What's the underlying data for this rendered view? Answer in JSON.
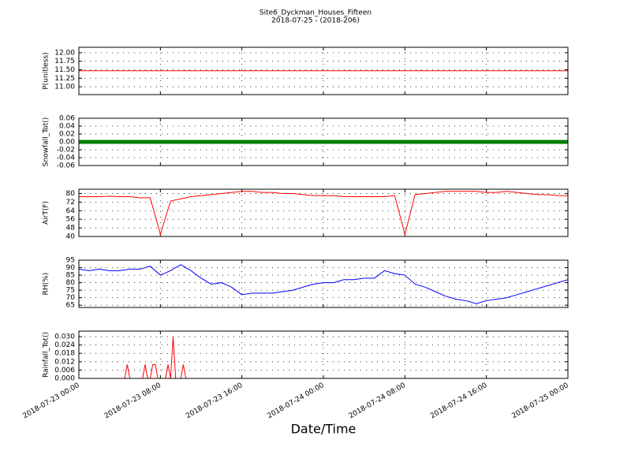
{
  "chart_data": [
    {
      "type": "line",
      "title": "Site6_Dyckman_Houses_Fifteen",
      "subtitle": "2018-07-25 - (2018-206)",
      "ylabel": "P(unitless)",
      "x": [
        "2018-07-23 00:00",
        "2018-07-25 00:00"
      ],
      "values": [
        11.47,
        11.47
      ],
      "color": "#ff0000",
      "linewidth": 1,
      "xlim": [
        "2018-07-23 00:00",
        "2018-07-25 00:00"
      ],
      "xticks": [
        "2018-07-23 00:00",
        "2018-07-23 08:00",
        "2018-07-23 16:00",
        "2018-07-24 00:00",
        "2018-07-24 08:00",
        "2018-07-24 16:00",
        "2018-07-25 00:00"
      ],
      "ylim": [
        10.77,
        12.16
      ],
      "yticks": [
        {
          "value": 11,
          "label": "11.00"
        },
        {
          "value": 11.25,
          "label": "11.25"
        },
        {
          "value": 11.5,
          "label": "11.50"
        },
        {
          "value": 11.75,
          "label": "11.75"
        },
        {
          "value": 12,
          "label": "12.00"
        }
      ],
      "grid": true
    },
    {
      "type": "line",
      "ylabel": "Snowfall_Tot()",
      "x": [
        "2018-07-23 00:00",
        "2018-07-25 00:00"
      ],
      "values": [
        0,
        0
      ],
      "color": "#008000",
      "linewidth": 5,
      "xlim": [
        "2018-07-23 00:00",
        "2018-07-25 00:00"
      ],
      "xticks": [
        "2018-07-23 00:00",
        "2018-07-23 08:00",
        "2018-07-23 16:00",
        "2018-07-24 00:00",
        "2018-07-24 08:00",
        "2018-07-24 16:00",
        "2018-07-25 00:00"
      ],
      "ylim": [
        -0.06,
        0.06
      ],
      "yticks": [
        {
          "value": -0.06,
          "label": "-0.06"
        },
        {
          "value": -0.04,
          "label": "-0.04"
        },
        {
          "value": -0.02,
          "label": "-0.02"
        },
        {
          "value": 0,
          "label": "0.00"
        },
        {
          "value": 0.02,
          "label": "0.02"
        },
        {
          "value": 0.04,
          "label": "0.04"
        },
        {
          "value": 0.06,
          "label": "0.06"
        }
      ],
      "grid": true
    },
    {
      "type": "line",
      "ylabel": "AirT(F)",
      "x": [
        "2018-07-23 00:00",
        "2018-07-23 01:00",
        "2018-07-23 02:00",
        "2018-07-23 03:00",
        "2018-07-23 04:00",
        "2018-07-23 05:00",
        "2018-07-23 06:00",
        "2018-07-23 07:00",
        "2018-07-23 08:00",
        "2018-07-23 09:00",
        "2018-07-23 10:00",
        "2018-07-23 11:00",
        "2018-07-23 12:00",
        "2018-07-23 13:00",
        "2018-07-23 14:00",
        "2018-07-23 15:00",
        "2018-07-23 16:00",
        "2018-07-23 17:00",
        "2018-07-23 18:00",
        "2018-07-23 19:00",
        "2018-07-23 20:00",
        "2018-07-23 21:00",
        "2018-07-23 22:00",
        "2018-07-23 23:00",
        "2018-07-24 00:00",
        "2018-07-24 01:00",
        "2018-07-24 02:00",
        "2018-07-24 03:00",
        "2018-07-24 04:00",
        "2018-07-24 05:00",
        "2018-07-24 06:00",
        "2018-07-24 07:00",
        "2018-07-24 08:00",
        "2018-07-24 09:00",
        "2018-07-24 10:00",
        "2018-07-24 11:00",
        "2018-07-24 12:00",
        "2018-07-24 13:00",
        "2018-07-24 14:00",
        "2018-07-24 15:00",
        "2018-07-24 16:00",
        "2018-07-24 17:00",
        "2018-07-24 18:00",
        "2018-07-24 19:00",
        "2018-07-24 20:00",
        "2018-07-24 21:00",
        "2018-07-24 22:00",
        "2018-07-24 23:00",
        "2018-07-25 00:00"
      ],
      "values": [
        77,
        77,
        77,
        77.5,
        77,
        77,
        76,
        76,
        42,
        73,
        75,
        77,
        78,
        79,
        80,
        81,
        82,
        82,
        81,
        81,
        80,
        80,
        79,
        78,
        78,
        78,
        77,
        77,
        77,
        77,
        77,
        78,
        42,
        79,
        80,
        81,
        82,
        82,
        82,
        82,
        81,
        81,
        82,
        81,
        80,
        79,
        79,
        78,
        78
      ],
      "color": "#ff0000",
      "linewidth": 1,
      "xlim": [
        "2018-07-23 00:00",
        "2018-07-25 00:00"
      ],
      "xticks": [
        "2018-07-23 00:00",
        "2018-07-23 08:00",
        "2018-07-23 16:00",
        "2018-07-24 00:00",
        "2018-07-24 08:00",
        "2018-07-24 16:00",
        "2018-07-25 00:00"
      ],
      "ylim": [
        40,
        84
      ],
      "yticks": [
        40,
        48,
        56,
        64,
        72,
        80
      ],
      "grid": true
    },
    {
      "type": "line",
      "ylabel": "RH(%)",
      "x": [
        "2018-07-23 00:00",
        "2018-07-23 01:00",
        "2018-07-23 02:00",
        "2018-07-23 03:00",
        "2018-07-23 04:00",
        "2018-07-23 05:00",
        "2018-07-23 06:00",
        "2018-07-23 07:00",
        "2018-07-23 08:00",
        "2018-07-23 09:00",
        "2018-07-23 10:00",
        "2018-07-23 11:00",
        "2018-07-23 12:00",
        "2018-07-23 13:00",
        "2018-07-23 14:00",
        "2018-07-23 15:00",
        "2018-07-23 16:00",
        "2018-07-23 17:00",
        "2018-07-23 18:00",
        "2018-07-23 19:00",
        "2018-07-23 20:00",
        "2018-07-23 21:00",
        "2018-07-23 22:00",
        "2018-07-23 23:00",
        "2018-07-24 00:00",
        "2018-07-24 01:00",
        "2018-07-24 02:00",
        "2018-07-24 03:00",
        "2018-07-24 04:00",
        "2018-07-24 05:00",
        "2018-07-24 06:00",
        "2018-07-24 07:00",
        "2018-07-24 08:00",
        "2018-07-24 09:00",
        "2018-07-24 10:00",
        "2018-07-24 11:00",
        "2018-07-24 12:00",
        "2018-07-24 13:00",
        "2018-07-24 14:00",
        "2018-07-24 15:00",
        "2018-07-24 16:00",
        "2018-07-24 17:00",
        "2018-07-24 18:00",
        "2018-07-24 19:00",
        "2018-07-24 20:00",
        "2018-07-24 21:00",
        "2018-07-24 22:00",
        "2018-07-24 23:00",
        "2018-07-25 00:00"
      ],
      "values": [
        89,
        88,
        89,
        88,
        88,
        89,
        89,
        91,
        85,
        88,
        92,
        88,
        83,
        79,
        80,
        77,
        72,
        73,
        73,
        73,
        74,
        75,
        77,
        79,
        80,
        80,
        82,
        82,
        83,
        83,
        88,
        86,
        85,
        79,
        77,
        74,
        71,
        69,
        68,
        66,
        68,
        69,
        70,
        72,
        74,
        76,
        78,
        80,
        82
      ],
      "color": "#0000ff",
      "linewidth": 1,
      "xlim": [
        "2018-07-23 00:00",
        "2018-07-25 00:00"
      ],
      "xticks": [
        "2018-07-23 00:00",
        "2018-07-23 08:00",
        "2018-07-23 16:00",
        "2018-07-24 00:00",
        "2018-07-24 08:00",
        "2018-07-24 16:00",
        "2018-07-25 00:00"
      ],
      "ylim": [
        63.5,
        95
      ],
      "yticks": [
        65,
        70,
        75,
        80,
        85,
        90,
        95
      ],
      "grid": true
    },
    {
      "type": "line",
      "ylabel": "Rainfall_Tot()",
      "xlabel": "Date/Time",
      "x": [
        "2018-07-23 00:00",
        "2018-07-23 04:30",
        "2018-07-23 04:45",
        "2018-07-23 05:00",
        "2018-07-23 06:15",
        "2018-07-23 06:30",
        "2018-07-23 06:45",
        "2018-07-23 07:00",
        "2018-07-23 07:15",
        "2018-07-23 07:30",
        "2018-07-23 07:45",
        "2018-07-23 08:30",
        "2018-07-23 08:45",
        "2018-07-23 09:00",
        "2018-07-23 09:15",
        "2018-07-23 09:30",
        "2018-07-23 10:00",
        "2018-07-23 10:15",
        "2018-07-23 10:30",
        "2018-07-25 00:00"
      ],
      "values": [
        0,
        0,
        0.01,
        0,
        0,
        0.01,
        0,
        0,
        0.01,
        0.01,
        0,
        0,
        0.01,
        0,
        0.03,
        0,
        0,
        0.01,
        0,
        0
      ],
      "color": "#ff0000",
      "linewidth": 1,
      "xlim": [
        "2018-07-23 00:00",
        "2018-07-25 00:00"
      ],
      "xticks": [
        "2018-07-23 00:00",
        "2018-07-23 08:00",
        "2018-07-23 16:00",
        "2018-07-24 00:00",
        "2018-07-24 08:00",
        "2018-07-24 16:00",
        "2018-07-25 00:00"
      ],
      "ylim": [
        0,
        0.034
      ],
      "yticks": [
        {
          "value": 0,
          "label": "0.000"
        },
        {
          "value": 0.006,
          "label": "0.006"
        },
        {
          "value": 0.012,
          "label": "0.012"
        },
        {
          "value": 0.018,
          "label": "0.018"
        },
        {
          "value": 0.024,
          "label": "0.024"
        },
        {
          "value": 0.03,
          "label": "0.030"
        }
      ],
      "grid": true
    }
  ]
}
